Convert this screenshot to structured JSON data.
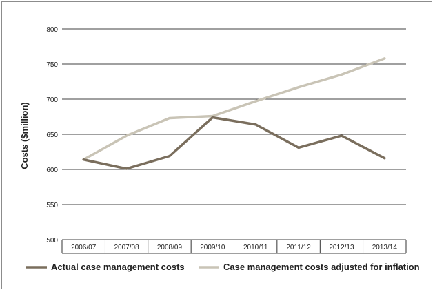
{
  "chart_data": {
    "type": "line",
    "ylabel": "Costs ($million)",
    "xlabel": "",
    "title": "",
    "categories": [
      "2006/07",
      "2007/08",
      "2008/09",
      "2009/10",
      "2010/11",
      "2011/12",
      "2012/13",
      "2013/14"
    ],
    "ylim": [
      500,
      800
    ],
    "yticks": [
      500,
      550,
      600,
      650,
      700,
      750,
      800
    ],
    "grid": "horizontal",
    "legend_position": "bottom",
    "series": [
      {
        "name": "Actual case management costs",
        "color": "#7a6e5d",
        "values": [
          614,
          601,
          619,
          674,
          664,
          631,
          648,
          616
        ]
      },
      {
        "name": "Case management costs adjusted for inflation",
        "color": "#c9c4b6",
        "values": [
          614,
          648,
          673,
          676,
          697,
          717,
          735,
          758
        ]
      }
    ]
  }
}
